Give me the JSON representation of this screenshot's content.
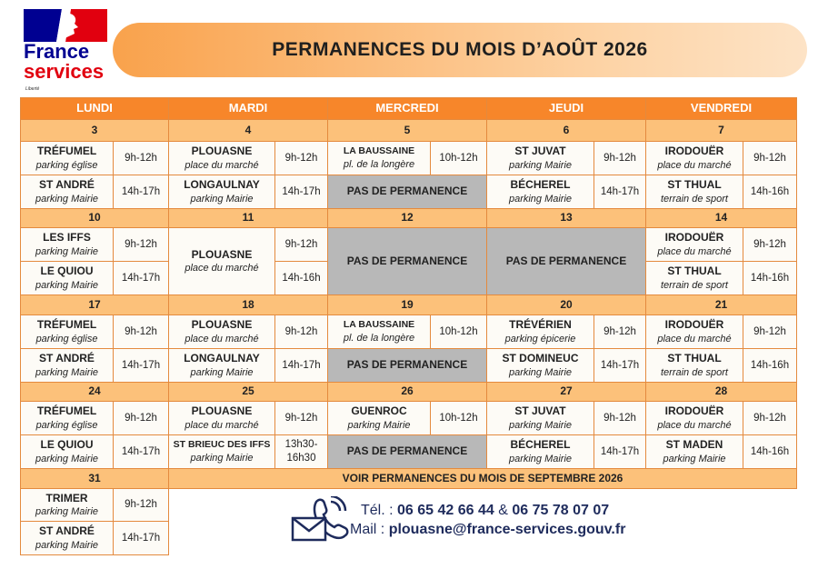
{
  "logo": {
    "line1": "France",
    "line2": "services",
    "motto": "Liberté"
  },
  "title": "PERMANENCES DU MOIS D’AOÛT 2026",
  "days": [
    "LUNDI",
    "MARDI",
    "MERCREDI",
    "JEUDI",
    "VENDREDI"
  ],
  "weeks": [
    {
      "dates": [
        3,
        4,
        5,
        6,
        7
      ],
      "days": [
        {
          "slots": [
            {
              "place": "TRÉFUMEL",
              "detail": "parking église",
              "hours": "9h-12h"
            },
            {
              "place": "ST ANDRÉ",
              "detail": "parking Mairie",
              "hours": "14h-17h"
            }
          ]
        },
        {
          "slots": [
            {
              "place": "PLOUASNE",
              "detail": "place du marché",
              "hours": "9h-12h"
            },
            {
              "place": "LONGAULNAY",
              "detail": "parking Mairie",
              "hours": "14h-17h"
            }
          ]
        },
        {
          "slots": [
            {
              "place": "LA BAUSSAINE",
              "detail": "pl. de la longère",
              "hours": "10h-12h"
            },
            {
              "closed": "PAS DE PERMANENCE"
            }
          ]
        },
        {
          "slots": [
            {
              "place": "ST JUVAT",
              "detail": "parking Mairie",
              "hours": "9h-12h"
            },
            {
              "place": "BÉCHEREL",
              "detail": "parking Mairie",
              "hours": "14h-17h"
            }
          ]
        },
        {
          "slots": [
            {
              "place": "IRODOUËR",
              "detail": "place du marché",
              "hours": "9h-12h"
            },
            {
              "place": "ST THUAL",
              "detail": "terrain de sport",
              "hours": "14h-16h"
            }
          ]
        }
      ]
    },
    {
      "dates": [
        10,
        11,
        12,
        13,
        14
      ],
      "days": [
        {
          "slots": [
            {
              "place": "LES IFFS",
              "detail": "parking Mairie",
              "hours": "9h-12h"
            },
            {
              "place": "LE QUIOU",
              "detail": "parking Mairie",
              "hours": "14h-17h"
            }
          ]
        },
        {
          "place": "PLOUASNE",
          "detail": "place du marché",
          "hours": [
            "9h-12h",
            "14h-16h"
          ]
        },
        {
          "closed": "PAS DE PERMANENCE"
        },
        {
          "closed": "PAS DE PERMANENCE"
        },
        {
          "slots": [
            {
              "place": "IRODOUËR",
              "detail": "place du marché",
              "hours": "9h-12h"
            },
            {
              "place": "ST THUAL",
              "detail": "terrain de sport",
              "hours": "14h-16h"
            }
          ]
        }
      ]
    },
    {
      "dates": [
        17,
        18,
        19,
        20,
        21
      ],
      "days": [
        {
          "slots": [
            {
              "place": "TRÉFUMEL",
              "detail": "parking église",
              "hours": "9h-12h"
            },
            {
              "place": "ST ANDRÉ",
              "detail": "parking Mairie",
              "hours": "14h-17h"
            }
          ]
        },
        {
          "slots": [
            {
              "place": "PLOUASNE",
              "detail": "place du marché",
              "hours": "9h-12h"
            },
            {
              "place": "LONGAULNAY",
              "detail": "parking Mairie",
              "hours": "14h-17h"
            }
          ]
        },
        {
          "slots": [
            {
              "place": "LA BAUSSAINE",
              "detail": "pl. de la longère",
              "hours": "10h-12h"
            },
            {
              "closed": "PAS DE PERMANENCE"
            }
          ]
        },
        {
          "slots": [
            {
              "place": "TRÉVÉRIEN",
              "detail": "parking épicerie",
              "hours": "9h-12h"
            },
            {
              "place": "ST DOMINEUC",
              "detail": "parking Mairie",
              "hours": "14h-17h"
            }
          ]
        },
        {
          "slots": [
            {
              "place": "IRODOUËR",
              "detail": "place du marché",
              "hours": "9h-12h"
            },
            {
              "place": "ST THUAL",
              "detail": "terrain de sport",
              "hours": "14h-16h"
            }
          ]
        }
      ]
    },
    {
      "dates": [
        24,
        25,
        26,
        27,
        28
      ],
      "days": [
        {
          "slots": [
            {
              "place": "TRÉFUMEL",
              "detail": "parking église",
              "hours": "9h-12h"
            },
            {
              "place": "LE QUIOU",
              "detail": "parking Mairie",
              "hours": "14h-17h"
            }
          ]
        },
        {
          "slots": [
            {
              "place": "PLOUASNE",
              "detail": "place du marché",
              "hours": "9h-12h"
            },
            {
              "place": "ST BRIEUC DES IFFS",
              "detail": "parking Mairie",
              "hours": "13h30-16h30"
            }
          ]
        },
        {
          "slots": [
            {
              "place": "GUENROC",
              "detail": "parking Mairie",
              "hours": "10h-12h"
            },
            {
              "closed": "PAS DE PERMANENCE"
            }
          ]
        },
        {
          "slots": [
            {
              "place": "ST JUVAT",
              "detail": "parking Mairie",
              "hours": "9h-12h"
            },
            {
              "place": "BÉCHEREL",
              "detail": "parking Mairie",
              "hours": "14h-17h"
            }
          ]
        },
        {
          "slots": [
            {
              "place": "IRODOUËR",
              "detail": "place du marché",
              "hours": "9h-12h"
            },
            {
              "place": "ST MADEN",
              "detail": "parking Mairie",
              "hours": "14h-16h"
            }
          ]
        }
      ]
    },
    {
      "dates": [
        31
      ],
      "note": "VOIR PERMANENCES DU MOIS DE SEPTEMBRE 2026",
      "days": [
        {
          "slots": [
            {
              "place": "TRIMER",
              "detail": "parking Mairie",
              "hours": "9h-12h"
            },
            {
              "place": "ST ANDRÉ",
              "detail": "parking Mairie",
              "hours": "14h-17h"
            }
          ]
        }
      ]
    }
  ],
  "contact": {
    "phone_label": "Tél. :",
    "phone1": "06 65 42 66 44",
    "and": "&",
    "phone2": "06 75 78 07 07",
    "mail_label": "Mail :",
    "mail": "plouasne@france-services.gouv.fr"
  }
}
